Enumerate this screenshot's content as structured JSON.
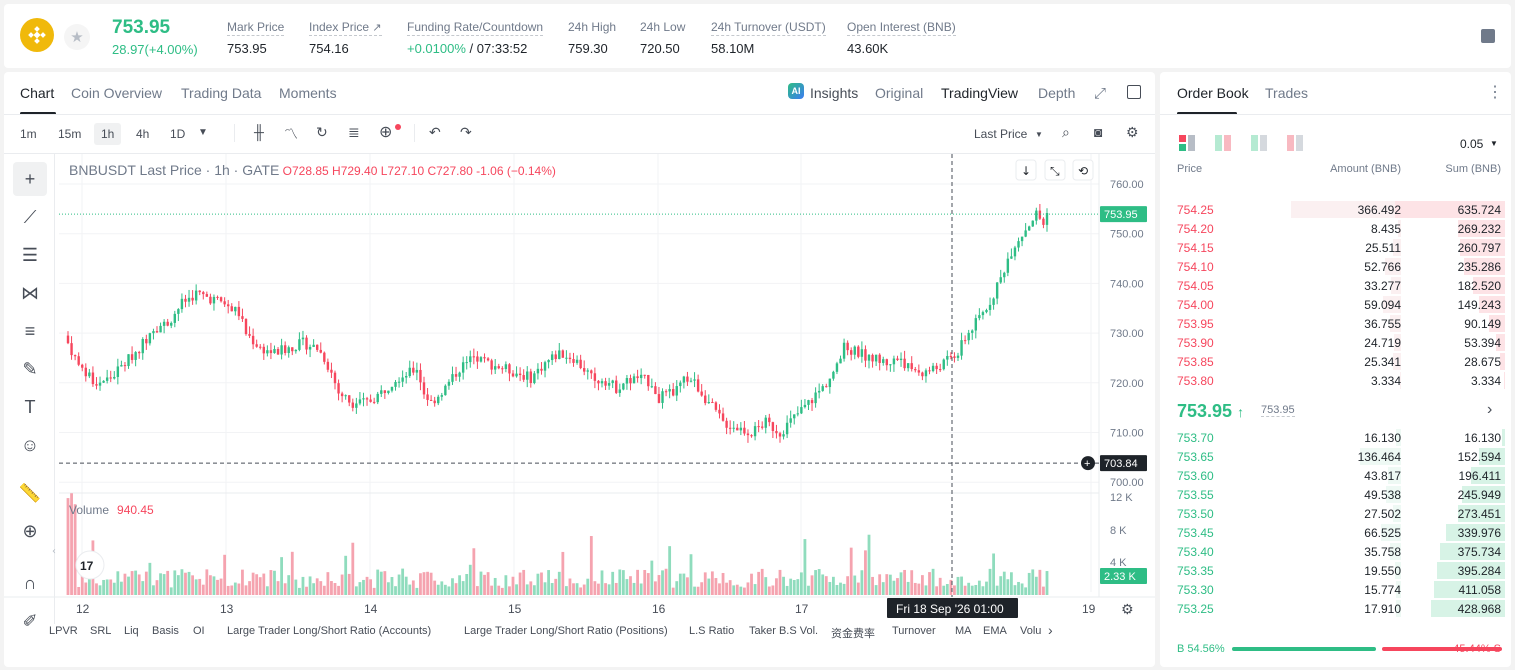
{
  "header": {
    "price": "753.95",
    "change": "28.97(+4.00%)",
    "mark_price_label": "Mark Price",
    "mark_price": "753.95",
    "index_price_label": "Index Price",
    "index_price": "754.16",
    "funding_label": "Funding Rate/Countdown",
    "funding_rate": "+0.0100%",
    "countdown": "/ 07:33:52",
    "high_label": "24h High",
    "high": "759.30",
    "low_label": "24h Low",
    "low": "720.50",
    "turnover_label": "24h Turnover (USDT)",
    "turnover": "58.10M",
    "oi_label": "Open Interest (BNB)",
    "oi": "43.60K"
  },
  "chart_tabs": [
    "Chart",
    "Coin Overview",
    "Trading Data",
    "Moments"
  ],
  "chart_views": {
    "insights": "Insights",
    "original": "Original",
    "tradingview": "TradingView",
    "depth": "Depth"
  },
  "timeframes": [
    "1m",
    "15m",
    "1h",
    "4h",
    "1D"
  ],
  "last_price_select": "Last Price",
  "legend": {
    "symbol": "BNBUSDT Last Price · 1h · GATE",
    "o": "O728.85",
    "h": "H729.40",
    "l": "L727.10",
    "c": "C727.80",
    "chg": "-1.06 (−0.14%)"
  },
  "volume_legend": {
    "label": "Volume",
    "value": "940.45"
  },
  "price_axis": [
    "760.00",
    "750.00",
    "740.00",
    "730.00",
    "720.00",
    "710.00",
    "700.00"
  ],
  "price_tags": {
    "last": "753.95",
    "cross": "703.84",
    "volume": "2.33 K"
  },
  "volume_axis": [
    "12 K",
    "8 K",
    "4 K"
  ],
  "time_axis": [
    "12",
    "13",
    "14",
    "15",
    "16",
    "17",
    "19"
  ],
  "time_tag": "Fri 18 Sep '26   01:00",
  "indicators": [
    "LPVR",
    "SRL",
    "Liq",
    "Basis",
    "OI",
    "Large Trader Long/Short Ratio (Accounts)",
    "Large Trader Long/Short Ratio (Positions)",
    "L.S Ratio",
    "Taker B.S Vol.",
    "资金费率",
    "Turnover",
    "MA",
    "EMA",
    "Volu"
  ],
  "orderbook": {
    "tabs": [
      "Order Book",
      "Trades"
    ],
    "precision": "0.05",
    "col_price": "Price",
    "col_amount": "Amount (BNB)",
    "col_sum": "Sum (BNB)",
    "asks": [
      {
        "price": "754.25",
        "amount": "366.492",
        "sum": "635.724"
      },
      {
        "price": "754.20",
        "amount": "8.435",
        "sum": "269.232"
      },
      {
        "price": "754.15",
        "amount": "25.511",
        "sum": "260.797"
      },
      {
        "price": "754.10",
        "amount": "52.766",
        "sum": "235.286"
      },
      {
        "price": "754.05",
        "amount": "33.277",
        "sum": "182.520"
      },
      {
        "price": "754.00",
        "amount": "59.094",
        "sum": "149.243"
      },
      {
        "price": "753.95",
        "amount": "36.755",
        "sum": "90.149"
      },
      {
        "price": "753.90",
        "amount": "24.719",
        "sum": "53.394"
      },
      {
        "price": "753.85",
        "amount": "25.341",
        "sum": "28.675"
      },
      {
        "price": "753.80",
        "amount": "3.334",
        "sum": "3.334"
      }
    ],
    "mid_price": "753.95",
    "mid_mark": "753.95",
    "bids": [
      {
        "price": "753.70",
        "amount": "16.130",
        "sum": "16.130"
      },
      {
        "price": "753.65",
        "amount": "136.464",
        "sum": "152.594"
      },
      {
        "price": "753.60",
        "amount": "43.817",
        "sum": "196.411"
      },
      {
        "price": "753.55",
        "amount": "49.538",
        "sum": "245.949"
      },
      {
        "price": "753.50",
        "amount": "27.502",
        "sum": "273.451"
      },
      {
        "price": "753.45",
        "amount": "66.525",
        "sum": "339.976"
      },
      {
        "price": "753.40",
        "amount": "35.758",
        "sum": "375.734"
      },
      {
        "price": "753.35",
        "amount": "19.550",
        "sum": "395.284"
      },
      {
        "price": "753.30",
        "amount": "15.774",
        "sum": "411.058"
      },
      {
        "price": "753.25",
        "amount": "17.910",
        "sum": "428.968"
      }
    ],
    "buy_ratio": "B 54.56%",
    "sell_ratio": "45.44% S",
    "buy_fraction": 0.5456
  }
}
